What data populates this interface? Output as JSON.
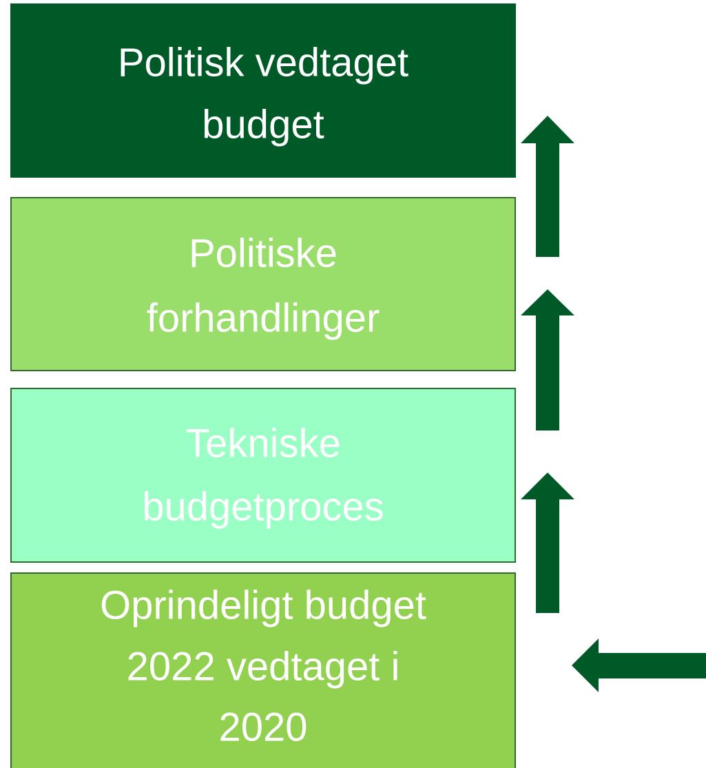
{
  "nodes": [
    {
      "lines": [
        "Politisk vedtaget",
        "budget"
      ]
    },
    {
      "lines": [
        "Politiske",
        "forhandlinger"
      ]
    },
    {
      "lines": [
        "Tekniske",
        "budgetproces"
      ]
    },
    {
      "lines": [
        "Oprindeligt budget",
        "2022 vedtaget i",
        "2020"
      ]
    }
  ]
}
